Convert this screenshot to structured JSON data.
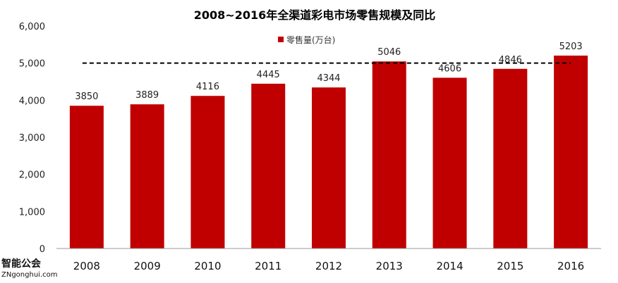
{
  "chart_data": {
    "type": "bar",
    "title": "2008~2016年全渠道彩电市场零售规模及同比",
    "categories": [
      "2008",
      "2009",
      "2010",
      "2011",
      "2012",
      "2013",
      "2014",
      "2015",
      "2016"
    ],
    "series": [
      {
        "name": "零售量(万台)",
        "values": [
          3850,
          3889,
          4116,
          4445,
          4344,
          5046,
          4606,
          4846,
          5203
        ],
        "color": "#C00000"
      }
    ],
    "ylim": [
      0,
      6000
    ],
    "yticks": [
      0,
      1000,
      2000,
      3000,
      4000,
      5000,
      6000
    ],
    "ytick_labels": [
      "0",
      "1,000",
      "2,000",
      "3,000",
      "4,000",
      "5,000",
      "6,000"
    ],
    "reference_line": {
      "value": 5000,
      "style": "dashed",
      "color": "#000000"
    },
    "grid": false,
    "legend": "top-center",
    "xlabel": "",
    "ylabel": ""
  },
  "watermark": {
    "logo_text": "智能公会",
    "url_text": "ZNgonghui.com"
  }
}
